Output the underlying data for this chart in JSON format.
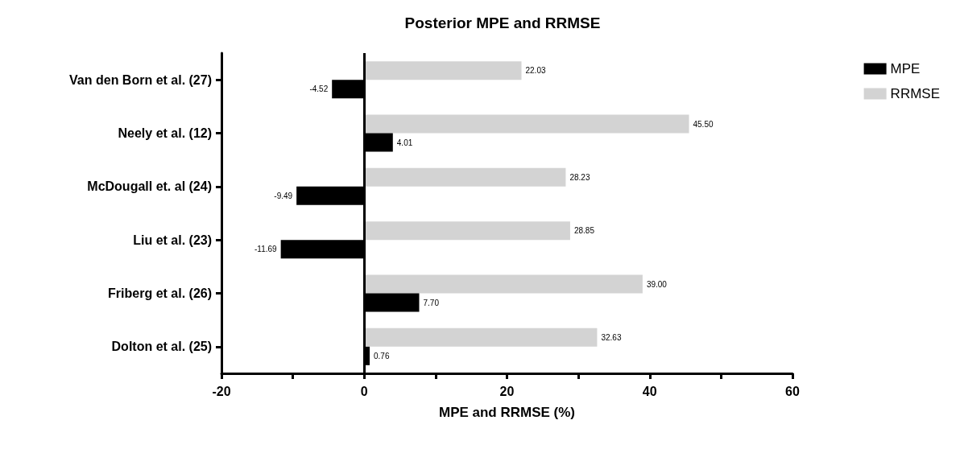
{
  "chart_data": {
    "type": "bar",
    "title": "Posterior MPE and RRMSE",
    "xlabel": "MPE and RRMSE (%)",
    "orientation": "horizontal",
    "categories": [
      "Van den Born et al. (27)",
      "Neely et al. (12)",
      "McDougall et. al (24)",
      "Liu et al. (23)",
      "Friberg et al. (26)",
      "Dolton et al. (25)"
    ],
    "series": [
      {
        "name": "MPE",
        "color": "#000000",
        "values": [
          -4.52,
          4.01,
          -9.49,
          -11.69,
          7.7,
          0.76
        ],
        "value_labels": [
          "-4.52",
          "4.01",
          "-9.49",
          "-11.69",
          "7.70",
          "0.76"
        ]
      },
      {
        "name": "RRMSE",
        "color": "#d3d3d3",
        "values": [
          22.03,
          45.5,
          28.23,
          28.85,
          39.0,
          32.63
        ],
        "value_labels": [
          "22.03",
          "45.50",
          "28.23",
          "28.85",
          "39.00",
          "32.63"
        ]
      }
    ],
    "xlim": [
      -20,
      60
    ],
    "xticks": [
      -20,
      {
        "value": -10,
        "label": null
      },
      0,
      {
        "value": 10,
        "label": null
      },
      20,
      {
        "value": 30,
        "label": null
      },
      40,
      {
        "value": 50,
        "label": null
      },
      60
    ],
    "ref_lines": [
      {
        "axis": "x",
        "value": 0
      }
    ],
    "grid": false,
    "legend": "top right"
  }
}
